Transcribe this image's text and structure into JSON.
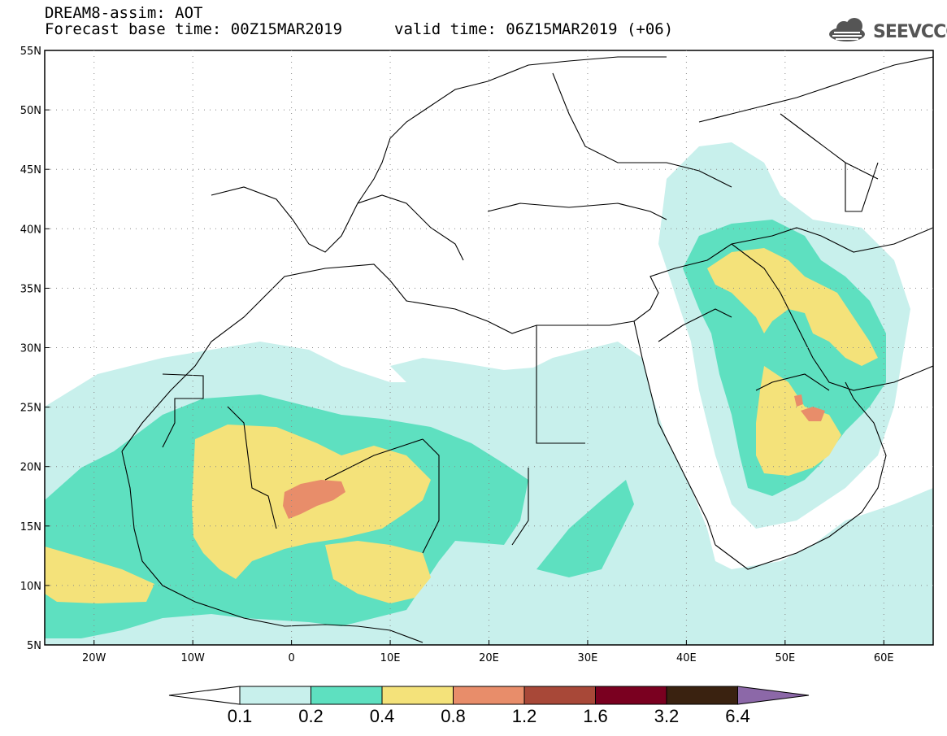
{
  "header": {
    "title": "DREAM8-assim: AOT",
    "base_time": "Forecast base time: 00Z15MAR2019",
    "valid_time": "valid time: 06Z15MAR2019 (+06)"
  },
  "logo": {
    "text": "SEEVCCC",
    "icon": "cloud-icon"
  },
  "map": {
    "projection": "lat-lon",
    "lon_range": [
      -25,
      65
    ],
    "lat_range": [
      5,
      55
    ],
    "lat_ticks": [
      "55N",
      "50N",
      "45N",
      "40N",
      "35N",
      "30N",
      "25N",
      "20N",
      "15N",
      "10N",
      "5N"
    ],
    "lon_ticks": [
      "20W",
      "10W",
      "0",
      "10E",
      "20E",
      "30E",
      "40E",
      "50E",
      "60E"
    ],
    "variable": "Aerosol optical thickness"
  },
  "colorbar": {
    "labels": [
      "0.1",
      "0.2",
      "0.4",
      "0.8",
      "1.2",
      "1.6",
      "3.2",
      "6.4"
    ],
    "colors": [
      "#c8f0ec",
      "#5ee0c0",
      "#f4e27a",
      "#e88d6a",
      "#a84838",
      "#7a0020",
      "#3a2210",
      "#8c68a8"
    ]
  }
}
